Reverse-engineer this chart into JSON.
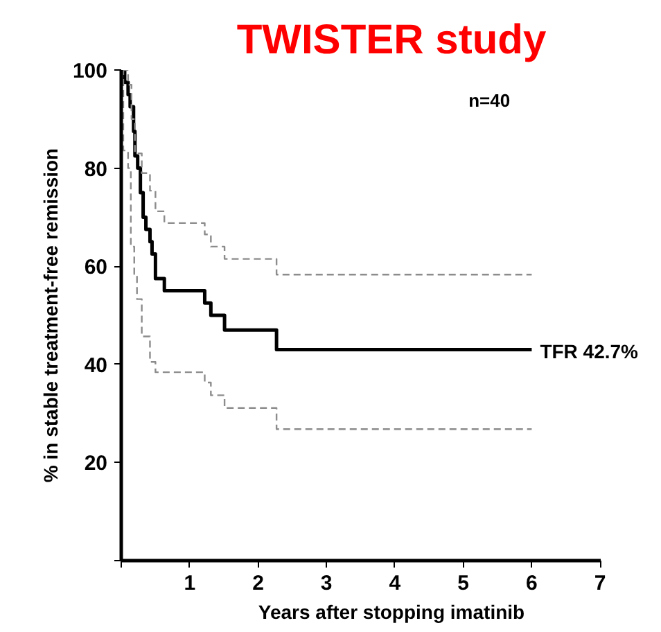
{
  "chart_data": {
    "type": "step",
    "title": "TWISTER study",
    "xlabel": "Years after stopping imatinib",
    "ylabel": "% in stable treatment-free remission",
    "xlim": [
      0,
      7
    ],
    "ylim": [
      0,
      100
    ],
    "xticks": [
      {
        "value": 0,
        "label": null
      },
      1,
      2,
      3,
      4,
      5,
      6,
      7
    ],
    "yticks": [
      {
        "value": 0,
        "label": null
      },
      20,
      40,
      60,
      80,
      100
    ],
    "grid": false,
    "annotations": [
      "n=40",
      {
        "text": "TFR 42.7%",
        "x": 6,
        "y": 42.7
      }
    ],
    "series": [
      {
        "color": "#000000",
        "line_style": "solid",
        "x": [
          0,
          0.05,
          0.1,
          0.13,
          0.18,
          0.2,
          0.24,
          0.28,
          0.32,
          0.36,
          0.42,
          0.45,
          0.5,
          0.63,
          1.22,
          1.31,
          1.51,
          2.27,
          6
        ],
        "values": [
          100,
          97.5,
          95,
          92.5,
          87.5,
          82.5,
          80,
          75,
          70,
          67.5,
          65,
          62.5,
          57.5,
          55,
          52.5,
          50,
          47,
          43,
          43
        ]
      },
      {
        "color": "#8c8c8c",
        "line_style": "dashed",
        "x": [
          0,
          0.1,
          0.15,
          0.2,
          0.3,
          0.42,
          0.5,
          0.63,
          1.22,
          1.31,
          1.51,
          2.27,
          6
        ],
        "values": [
          100,
          97,
          90,
          83,
          79,
          75.4,
          71.2,
          68.8,
          66.5,
          64,
          61.5,
          58.3,
          58.3
        ]
      },
      {
        "color": "#8c8c8c",
        "line_style": "dashed",
        "x": [
          0,
          0.03,
          0.1,
          0.14,
          0.19,
          0.23,
          0.3,
          0.42,
          0.5,
          1.22,
          1.31,
          1.51,
          2.27,
          6
        ],
        "values": [
          100,
          83.6,
          80,
          64,
          58.4,
          53.3,
          45.7,
          40.5,
          38.4,
          36.3,
          33.7,
          31.1,
          26.8,
          26.8
        ]
      }
    ]
  }
}
